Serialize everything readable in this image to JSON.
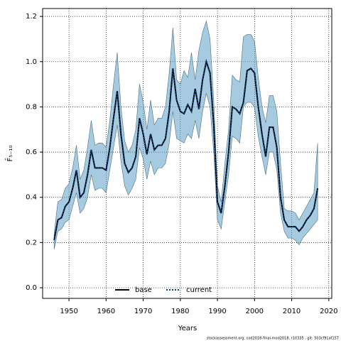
{
  "chart_data": {
    "type": "line",
    "y_label": "F̄₅₋₁₀",
    "x_label": "Years",
    "footnote": "stockassessment.org, cod2018-final-mod2018, r10335 , git: 503cf91af157",
    "x": [
      1946,
      1947,
      1948,
      1949,
      1950,
      1951,
      1952,
      1953,
      1954,
      1955,
      1956,
      1957,
      1958,
      1959,
      1960,
      1961,
      1962,
      1963,
      1964,
      1965,
      1966,
      1967,
      1968,
      1969,
      1970,
      1971,
      1972,
      1973,
      1974,
      1975,
      1976,
      1977,
      1978,
      1979,
      1980,
      1981,
      1982,
      1983,
      1984,
      1985,
      1986,
      1987,
      1988,
      1989,
      1990,
      1991,
      1992,
      1993,
      1994,
      1995,
      1996,
      1997,
      1998,
      1999,
      2000,
      2001,
      2002,
      2003,
      2004,
      2005,
      2006,
      2007,
      2008,
      2009,
      2010,
      2011,
      2012,
      2013,
      2014,
      2015,
      2016,
      2017
    ],
    "series": [
      {
        "name": "base",
        "color": "#000000",
        "dash": false,
        "values": [
          0.21,
          0.3,
          0.31,
          0.36,
          0.38,
          0.44,
          0.52,
          0.4,
          0.42,
          0.5,
          0.61,
          0.53,
          0.53,
          0.53,
          0.52,
          0.62,
          0.75,
          0.87,
          0.68,
          0.55,
          0.51,
          0.53,
          0.58,
          0.75,
          0.68,
          0.59,
          0.68,
          0.61,
          0.63,
          0.63,
          0.66,
          0.78,
          0.97,
          0.83,
          0.78,
          0.77,
          0.81,
          0.78,
          0.88,
          0.79,
          0.92,
          1.0,
          0.95,
          0.72,
          0.38,
          0.33,
          0.45,
          0.6,
          0.8,
          0.79,
          0.77,
          0.82,
          0.96,
          0.97,
          0.95,
          0.8,
          0.68,
          0.58,
          0.71,
          0.71,
          0.62,
          0.4,
          0.3,
          0.27,
          0.27,
          0.27,
          0.25,
          0.27,
          0.3,
          0.32,
          0.35,
          0.44
        ]
      },
      {
        "name": "current",
        "color": "#0b3a73",
        "dash": true,
        "band_color": "#5d9ec4",
        "values": [
          0.21,
          0.3,
          0.31,
          0.36,
          0.38,
          0.44,
          0.52,
          0.4,
          0.42,
          0.5,
          0.61,
          0.53,
          0.53,
          0.53,
          0.52,
          0.62,
          0.75,
          0.87,
          0.68,
          0.55,
          0.51,
          0.53,
          0.58,
          0.75,
          0.68,
          0.59,
          0.68,
          0.61,
          0.63,
          0.63,
          0.66,
          0.78,
          0.97,
          0.83,
          0.78,
          0.77,
          0.81,
          0.78,
          0.88,
          0.79,
          0.92,
          1.0,
          0.95,
          0.72,
          0.38,
          0.33,
          0.45,
          0.6,
          0.8,
          0.79,
          0.77,
          0.82,
          0.96,
          0.97,
          0.95,
          0.8,
          0.68,
          0.58,
          0.71,
          0.71,
          0.62,
          0.4,
          0.3,
          0.27,
          0.27,
          0.27,
          0.25,
          0.27,
          0.3,
          0.32,
          0.35,
          0.44
        ],
        "upper": [
          0.24,
          0.38,
          0.39,
          0.44,
          0.46,
          0.53,
          0.63,
          0.48,
          0.52,
          0.62,
          0.74,
          0.63,
          0.64,
          0.64,
          0.62,
          0.74,
          0.9,
          1.04,
          0.8,
          0.65,
          0.6,
          0.63,
          0.7,
          0.9,
          0.82,
          0.7,
          0.83,
          0.72,
          0.75,
          0.75,
          0.8,
          0.95,
          1.15,
          0.92,
          0.9,
          0.96,
          0.93,
          1.04,
          0.92,
          1.05,
          1.13,
          1.18,
          1.1,
          0.83,
          0.45,
          0.38,
          0.55,
          0.7,
          0.94,
          0.92,
          0.91,
          1.11,
          1.12,
          1.12,
          1.09,
          0.93,
          0.8,
          0.73,
          0.85,
          0.85,
          0.78,
          0.55,
          0.35,
          0.34,
          0.34,
          0.33,
          0.3,
          0.33,
          0.36,
          0.39,
          0.42,
          0.64
        ],
        "lower": [
          0.17,
          0.25,
          0.26,
          0.29,
          0.3,
          0.36,
          0.42,
          0.33,
          0.35,
          0.4,
          0.5,
          0.43,
          0.44,
          0.44,
          0.42,
          0.52,
          0.62,
          0.72,
          0.56,
          0.45,
          0.41,
          0.44,
          0.48,
          0.62,
          0.57,
          0.48,
          0.56,
          0.5,
          0.53,
          0.53,
          0.55,
          0.64,
          0.78,
          0.66,
          0.65,
          0.64,
          0.68,
          0.66,
          0.74,
          0.66,
          0.78,
          0.86,
          0.8,
          0.6,
          0.3,
          0.26,
          0.38,
          0.5,
          0.67,
          0.66,
          0.64,
          0.8,
          0.82,
          0.82,
          0.8,
          0.67,
          0.58,
          0.5,
          0.6,
          0.6,
          0.52,
          0.33,
          0.25,
          0.22,
          0.22,
          0.21,
          0.19,
          0.22,
          0.24,
          0.26,
          0.28,
          0.3
        ]
      }
    ],
    "xlim": [
      1942.9,
      2020.8
    ],
    "ylim": [
      -0.047,
      1.235
    ],
    "xticks": [
      1950,
      1960,
      1970,
      1980,
      1990,
      2000,
      2010,
      2020
    ],
    "yticks": [
      {
        "value": 0,
        "label": "0.0"
      },
      0.2,
      0.4,
      0.6,
      0.8,
      {
        "value": 1,
        "label": "1.0"
      },
      1.2
    ],
    "grid": true,
    "legend": "bottom"
  }
}
